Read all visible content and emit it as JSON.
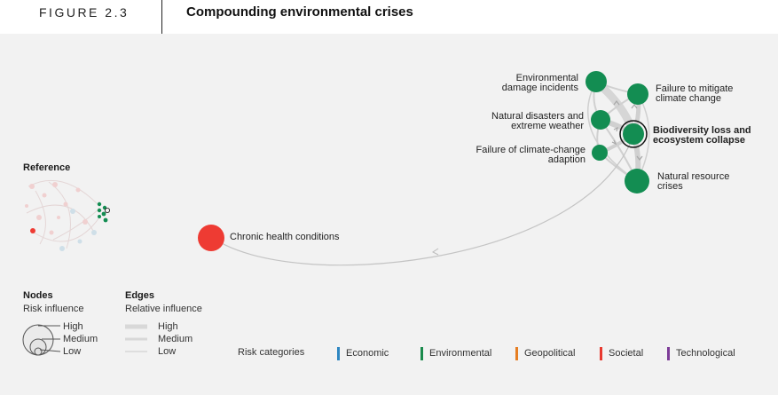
{
  "figure": {
    "label": "FIGURE 2.3",
    "title": "Compounding environmental crises"
  },
  "nodes": [
    {
      "id": "environmental-damage",
      "label_lines": [
        "Environmental",
        "damage incidents"
      ],
      "category": "Environmental"
    },
    {
      "id": "failure-mitigate",
      "label_lines": [
        "Failure to mitigate",
        "climate change"
      ],
      "category": "Environmental"
    },
    {
      "id": "natural-disasters",
      "label_lines": [
        "Natural disasters and",
        "extreme weather"
      ],
      "category": "Environmental"
    },
    {
      "id": "biodiversity-loss",
      "label_lines": [
        "Biodiversity loss and",
        "ecosystem collapse"
      ],
      "category": "Environmental",
      "highlighted": true
    },
    {
      "id": "failure-adaption",
      "label_lines": [
        "Failure of climate-change",
        "adaption"
      ],
      "category": "Environmental"
    },
    {
      "id": "natural-resource",
      "label_lines": [
        "Natural resource",
        "crises"
      ],
      "category": "Environmental"
    },
    {
      "id": "chronic-health",
      "label_lines": [
        "Chronic health conditions"
      ],
      "category": "Societal"
    }
  ],
  "reference": {
    "title": "Reference"
  },
  "legend": {
    "nodes_title": "Nodes",
    "nodes_subtitle": "Risk influence",
    "edges_title": "Edges",
    "edges_subtitle": "Relative influence",
    "levels": [
      "High",
      "Medium",
      "Low"
    ],
    "categories_label": "Risk categories",
    "categories": [
      {
        "name": "Economic",
        "color": "#2e86c1"
      },
      {
        "name": "Environmental",
        "color": "#1a8a4c"
      },
      {
        "name": "Geopolitical",
        "color": "#e67e22"
      },
      {
        "name": "Societal",
        "color": "#e8392f"
      },
      {
        "name": "Technological",
        "color": "#7d3c98"
      }
    ]
  },
  "colors": {
    "environmental": "#138d52",
    "societal": "#ee3b33",
    "edge": "#c8c8c8"
  }
}
